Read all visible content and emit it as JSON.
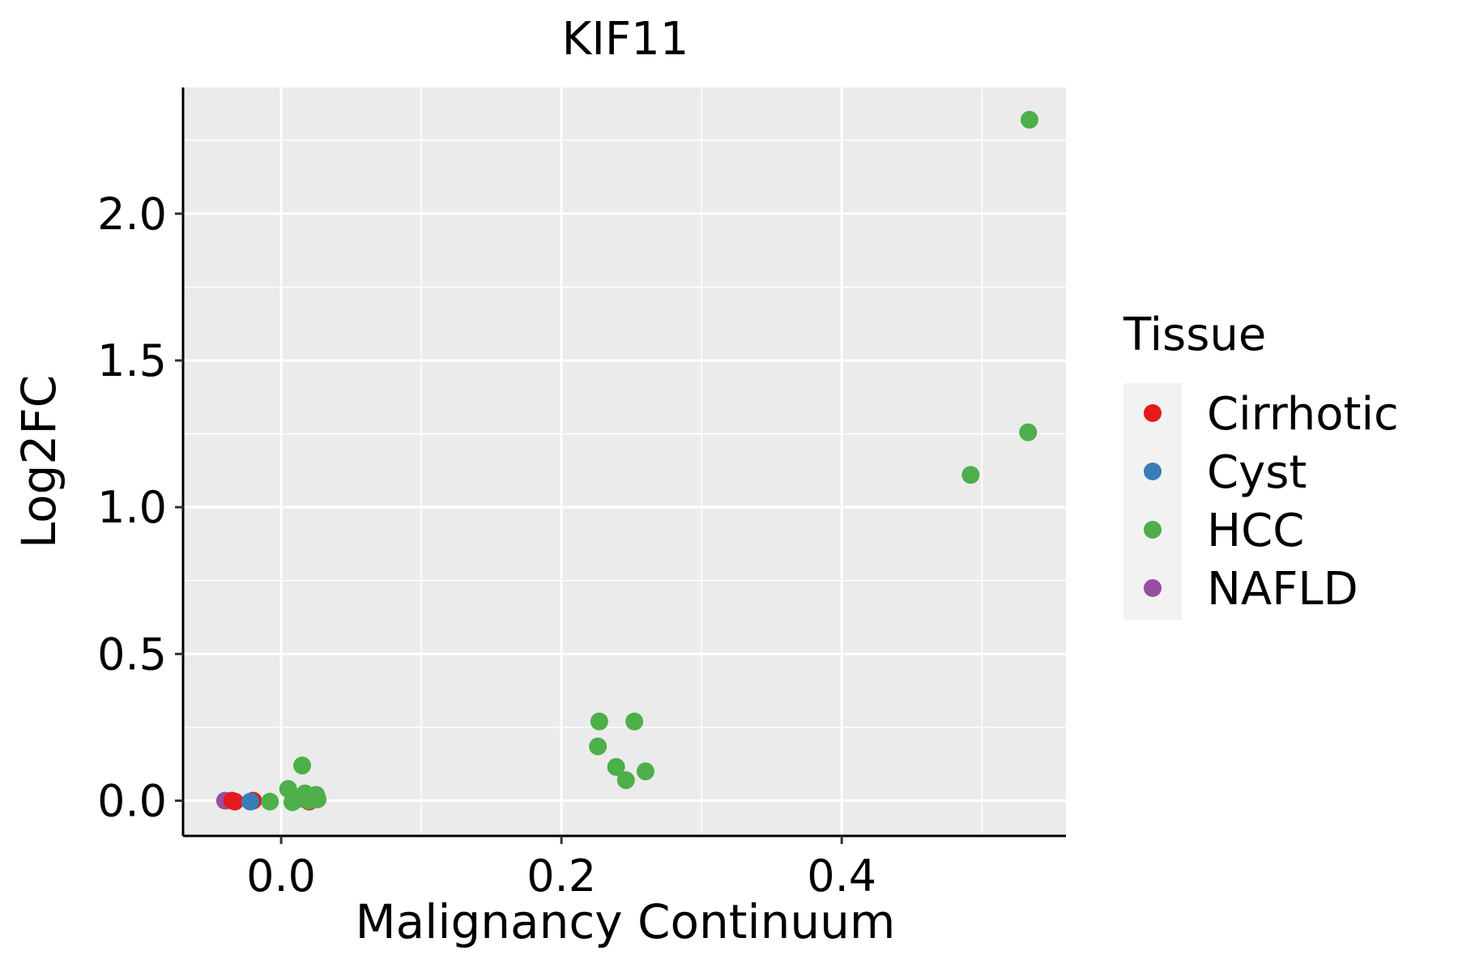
{
  "chart_data": {
    "type": "scatter",
    "title": "KIF11",
    "xlabel": "Malignancy Continuum",
    "ylabel": "Log2FC",
    "xlim": [
      -0.07,
      0.56
    ],
    "ylim": [
      -0.12,
      2.43
    ],
    "x_ticks": [
      0.0,
      0.2,
      0.4
    ],
    "x_tick_labels": [
      "0.0",
      "0.2",
      "0.4"
    ],
    "y_ticks": [
      0.0,
      0.5,
      1.0,
      1.5,
      2.0
    ],
    "y_tick_labels": [
      "0.0",
      "0.5",
      "1.0",
      "1.5",
      "2.0"
    ],
    "grid": true,
    "legend": {
      "title": "Tissue",
      "position": "right",
      "entries": [
        {
          "label": "Cirrhotic",
          "color": "#e41a1c"
        },
        {
          "label": "Cyst",
          "color": "#377eb8"
        },
        {
          "label": "HCC",
          "color": "#4daf4a"
        },
        {
          "label": "NAFLD",
          "color": "#984ea3"
        }
      ]
    },
    "series": [
      {
        "name": "NAFLD",
        "color": "#984ea3",
        "points": [
          [
            -0.04,
            0.0
          ]
        ]
      },
      {
        "name": "Cirrhotic",
        "color": "#e41a1c",
        "points": [
          [
            -0.035,
            0.0
          ],
          [
            -0.033,
            -0.003
          ],
          [
            -0.02,
            0.0
          ],
          [
            0.02,
            -0.003
          ]
        ]
      },
      {
        "name": "Cyst",
        "color": "#377eb8",
        "points": [
          [
            -0.022,
            -0.003
          ]
        ]
      },
      {
        "name": "HCC",
        "color": "#4daf4a",
        "points": [
          [
            -0.008,
            -0.003
          ],
          [
            0.005,
            0.04
          ],
          [
            0.008,
            -0.005
          ],
          [
            0.012,
            0.005
          ],
          [
            0.015,
            0.12
          ],
          [
            0.017,
            0.025
          ],
          [
            0.02,
            0.0
          ],
          [
            0.025,
            0.02
          ],
          [
            0.026,
            0.005
          ],
          [
            0.226,
            0.185
          ],
          [
            0.227,
            0.27
          ],
          [
            0.239,
            0.115
          ],
          [
            0.246,
            0.07
          ],
          [
            0.252,
            0.27
          ],
          [
            0.26,
            0.1
          ],
          [
            0.492,
            1.11
          ],
          [
            0.533,
            1.255
          ],
          [
            0.534,
            2.32
          ]
        ]
      }
    ]
  }
}
